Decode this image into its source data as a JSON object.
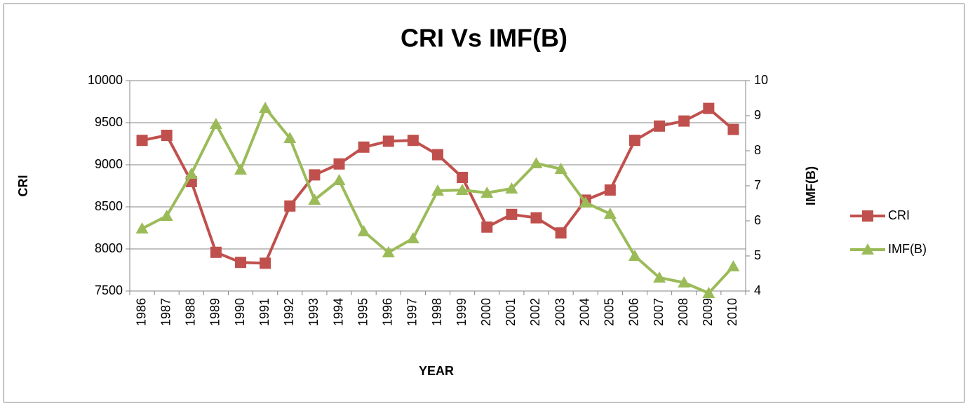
{
  "chart_data": {
    "type": "line",
    "title": "CRI Vs IMF(B)",
    "xlabel": "YEAR",
    "ylabel": "CRI",
    "y2label": "IMF(B)",
    "categories": [
      "1986",
      "1987",
      "1988",
      "1989",
      "1990",
      "1991",
      "1992",
      "1993",
      "1994",
      "1995",
      "1996",
      "1997",
      "1998",
      "1999",
      "2000",
      "2001",
      "2002",
      "2003",
      "2004",
      "2005",
      "2006",
      "2007",
      "2008",
      "2009",
      "2010"
    ],
    "series": [
      {
        "name": "CRI",
        "color": "#c0504d",
        "marker": "square",
        "values": [
          9290,
          9350,
          8800,
          7960,
          7840,
          7830,
          8510,
          8880,
          9010,
          9210,
          9280,
          9290,
          9120,
          8850,
          8260,
          8410,
          8370,
          8190,
          8580,
          8700,
          9290,
          9460,
          9520,
          9670,
          9420
        ]
      },
      {
        "name": "IMF(B)",
        "color": "#9bbb59",
        "marker": "triangle",
        "axis": "y2",
        "values": [
          5.78,
          6.14,
          7.34,
          8.76,
          7.46,
          9.22,
          8.36,
          6.6,
          7.16,
          5.7,
          5.1,
          5.5,
          6.86,
          6.88,
          6.8,
          6.92,
          7.64,
          7.48,
          6.52,
          6.2,
          5.0,
          4.38,
          4.24,
          3.94,
          4.7
        ]
      }
    ],
    "ylim": [
      7500,
      10000
    ],
    "yticks": [
      7500,
      8000,
      8500,
      9000,
      9500,
      10000
    ],
    "y2lim": [
      4,
      10
    ],
    "y2ticks": [
      4,
      5,
      6,
      7,
      8,
      9,
      10
    ],
    "grid": true,
    "legend": "right"
  }
}
